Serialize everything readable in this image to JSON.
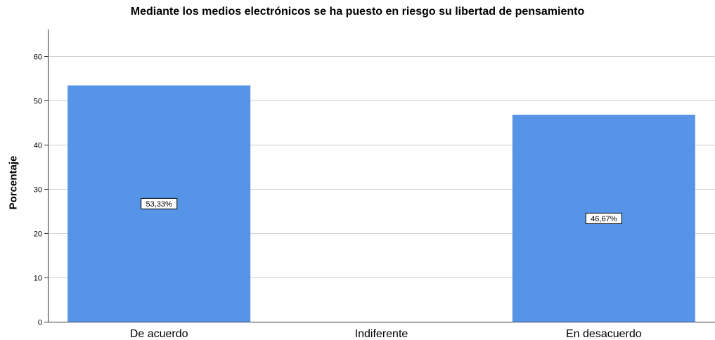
{
  "chart_data": {
    "type": "bar",
    "title": "Mediante los medios electrónicos se ha puesto en riesgo su libertad de pensamiento",
    "xlabel": "",
    "ylabel": "Porcentaje",
    "categories": [
      "De acuerdo",
      "Indiferente",
      "En desacuerdo"
    ],
    "values": [
      53.33,
      0,
      46.67
    ],
    "data_labels": [
      "53,33%",
      "",
      "46,67%"
    ],
    "ylim": [
      0,
      66
    ],
    "yticks": [
      0,
      10,
      20,
      30,
      40,
      50,
      60
    ],
    "grid": true,
    "legend": "none",
    "colors": {
      "bar": "#5594e6",
      "grid": "#d0d0d0",
      "axis": "#333333"
    }
  }
}
